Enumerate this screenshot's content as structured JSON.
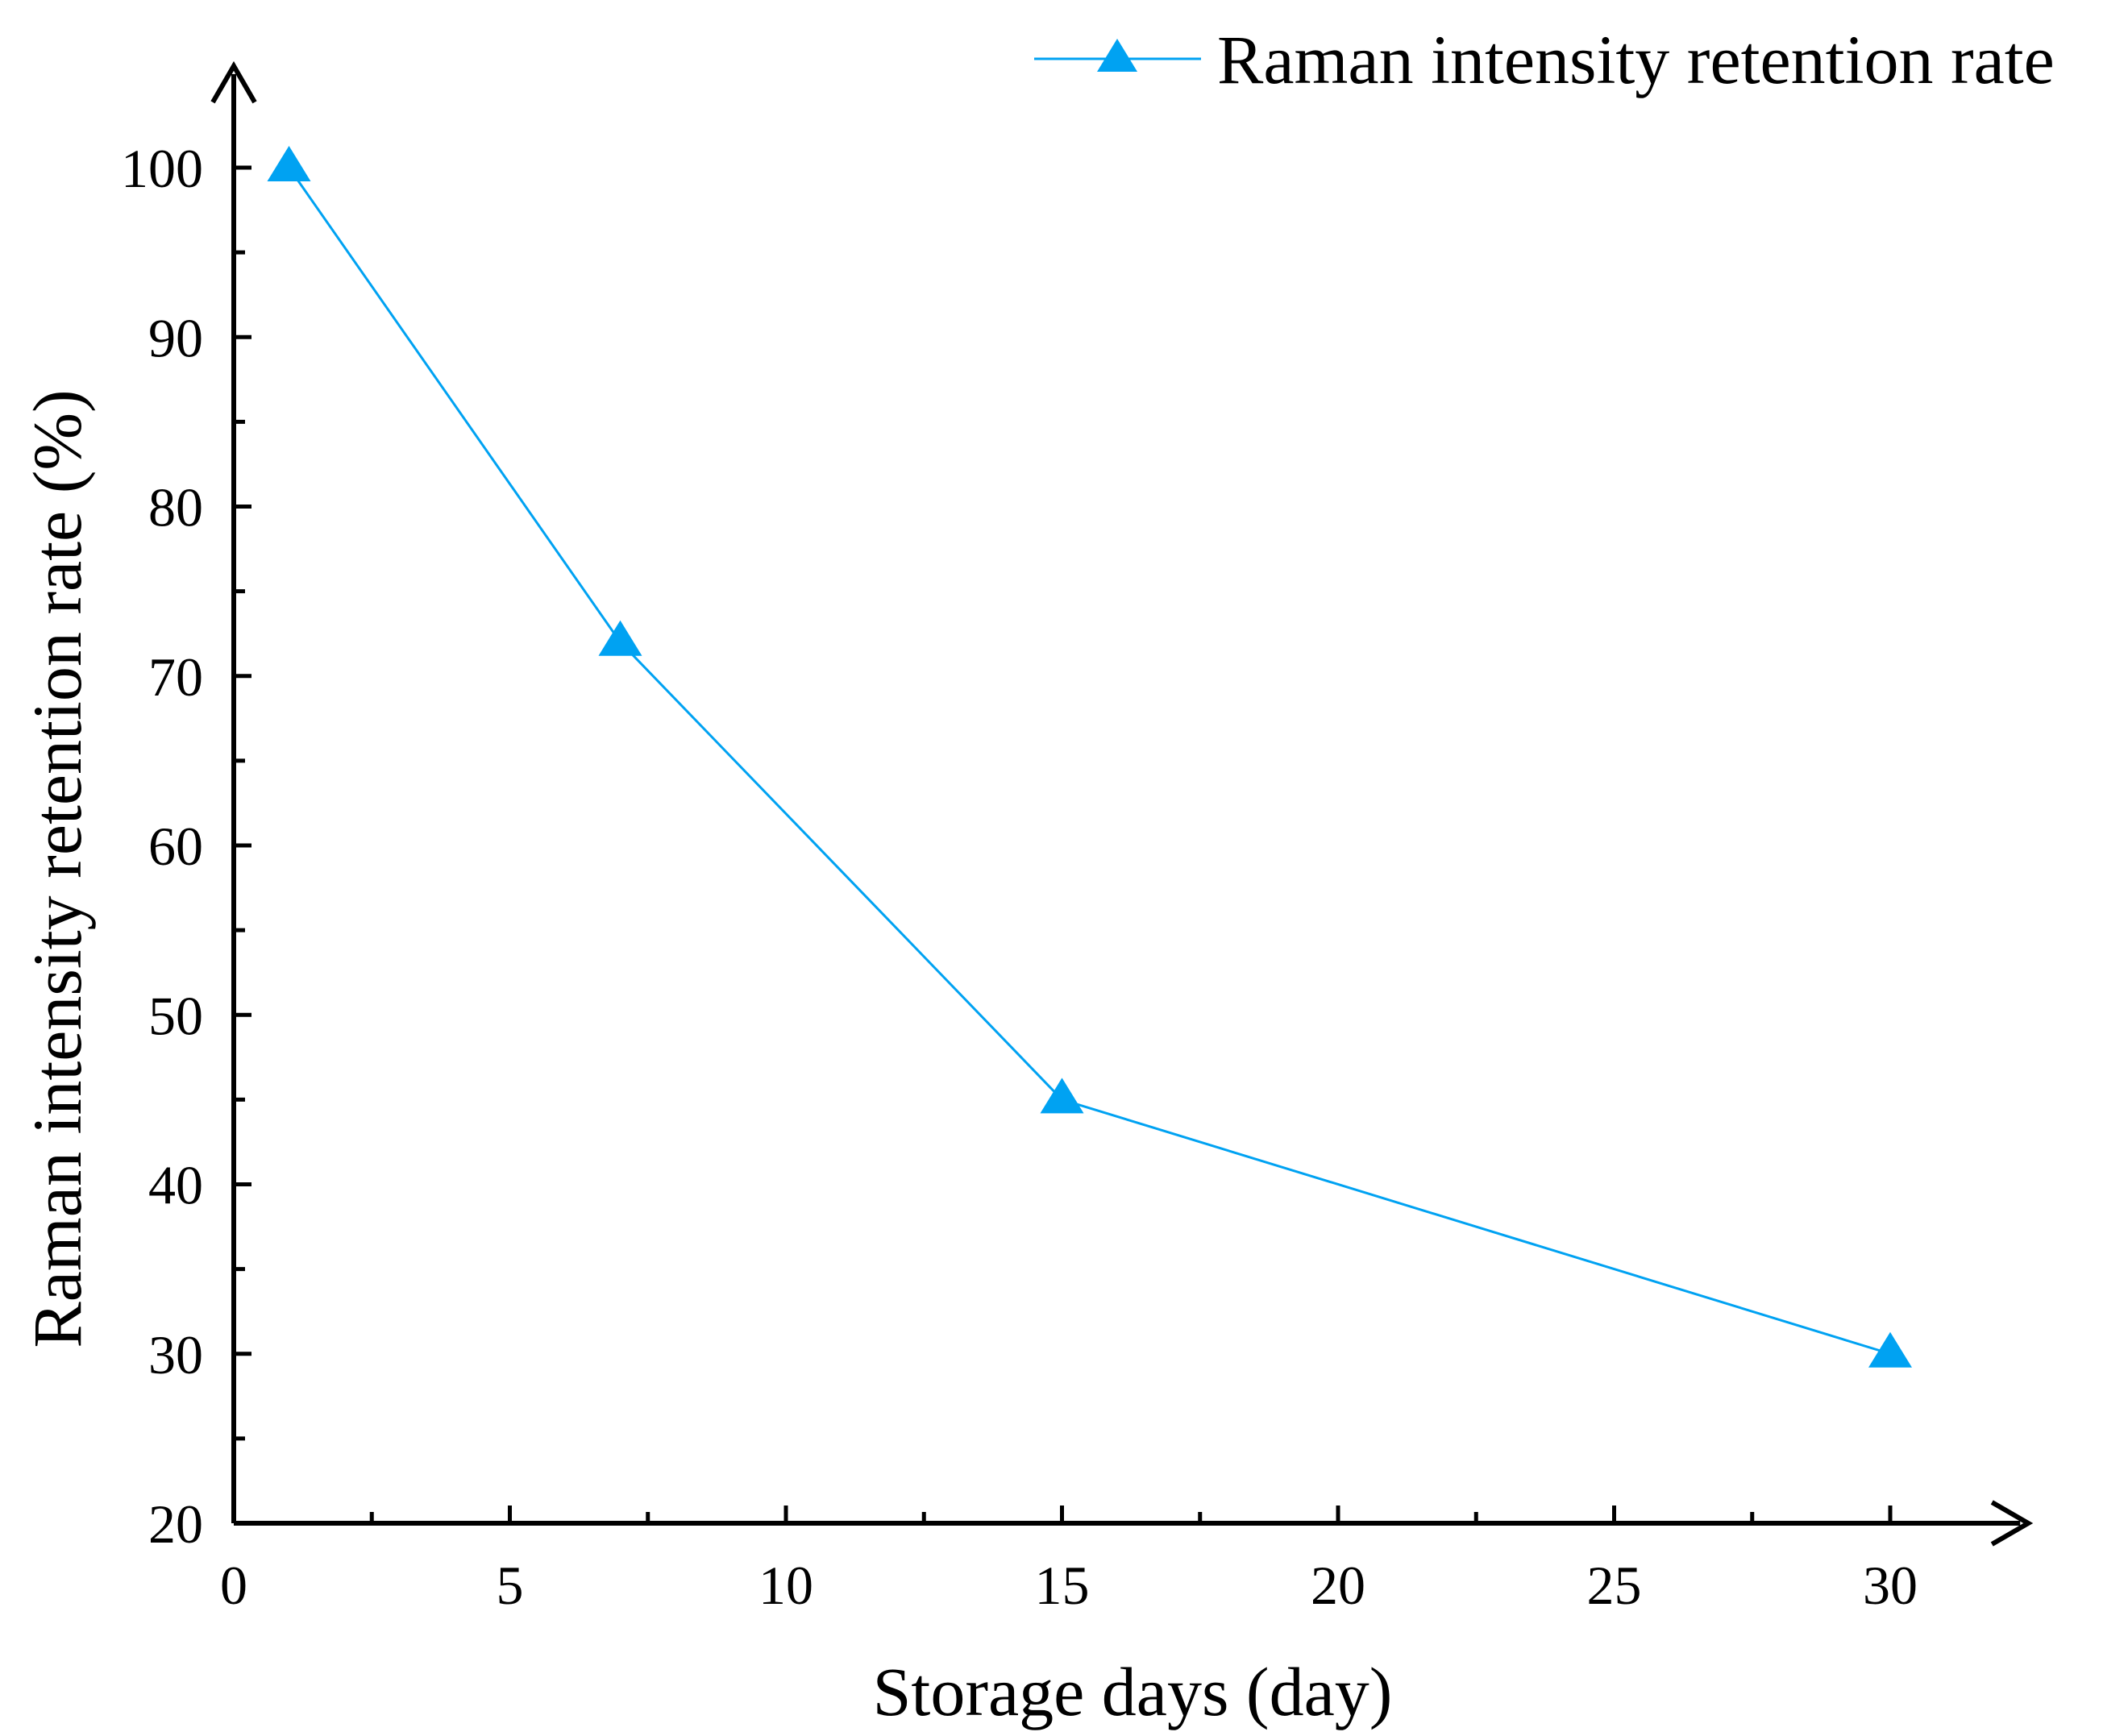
{
  "chart_data": {
    "type": "line",
    "title": "",
    "xlabel": "Storage days (day)",
    "ylabel": "Raman intensity retention rate (%)",
    "xlim": [
      0,
      32.5
    ],
    "ylim": [
      20,
      106
    ],
    "x_ticks": [
      0,
      5,
      10,
      15,
      20,
      25,
      30
    ],
    "x_tick_labels": [
      "0",
      "5",
      "10",
      "15",
      "20",
      "25",
      "30"
    ],
    "y_ticks": [
      20,
      30,
      40,
      50,
      60,
      70,
      80,
      90,
      100
    ],
    "y_tick_labels": [
      "20",
      "30",
      "40",
      "50",
      "60",
      "70",
      "80",
      "90",
      "100"
    ],
    "grid": false,
    "legend_position": "top-right",
    "series": [
      {
        "name": "Raman intensity retention rate",
        "marker": "triangle",
        "color": "#00A2F2",
        "x": [
          1,
          7,
          15,
          30
        ],
        "y": [
          100,
          72,
          45,
          30
        ]
      }
    ]
  }
}
